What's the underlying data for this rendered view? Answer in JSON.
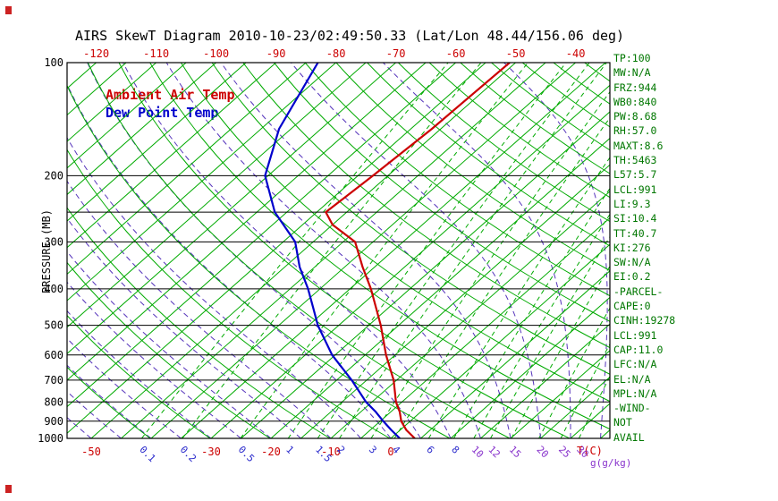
{
  "title": "AIRS SkewT Diagram 2010-10-23/02:49:50.33 (Lat/Lon 48.44/156.06 deg)",
  "legend": {
    "ambient": "Ambient Air Temp",
    "dew_point": "Dew Point Temp"
  },
  "axes": {
    "pressure_axis_label": "PRESSURE (MB)",
    "pressure_tick_labels": [
      "100",
      "200",
      "300",
      "400",
      "500",
      "600",
      "700",
      "800",
      "900",
      "1000"
    ],
    "pressure_tick_values": [
      100,
      200,
      300,
      400,
      500,
      600,
      700,
      800,
      900,
      1000
    ],
    "pressure_grid_lines_mb": [
      100,
      200,
      250,
      300,
      400,
      500,
      600,
      700,
      800,
      900,
      1000
    ],
    "top_temperature_tick_labels": [
      "-120",
      "-110",
      "-100",
      "-90",
      "-80",
      "-70",
      "-60",
      "-50",
      "-40"
    ],
    "top_temperature_tick_values": [
      -120,
      -110,
      -100,
      -90,
      -80,
      -70,
      -60,
      -50,
      -40
    ],
    "bottom_temperature_tick_labels": [
      "-50",
      "-30",
      "-20",
      "-10",
      "0"
    ],
    "bottom_temperature_tick_values": [
      -50,
      -30,
      -20,
      -10,
      0
    ],
    "temperature_unit_label": "T(C)",
    "mixing_ratio_unit_label": "g(g/kg)",
    "mixing_ratio_tick_labels": [
      "0.1",
      "0.2",
      "0.5",
      "1",
      "1.5",
      "2",
      "3",
      "4",
      "6",
      "8",
      "10",
      "12",
      "15",
      "20",
      "25",
      "30"
    ],
    "mixing_ratio_tick_values": [
      0.1,
      0.2,
      0.5,
      1,
      1.5,
      2,
      3,
      4,
      6,
      8,
      10,
      12,
      15,
      20,
      25,
      30
    ]
  },
  "chart_data": {
    "type": "line",
    "subtype": "skew-t-log-p",
    "title": "AIRS SkewT Diagram 2010-10-23/02:49:50.33 (Lat/Lon 48.44/156.06 deg)",
    "xlabel": "T(C)",
    "ylabel": "PRESSURE (MB)",
    "pressure_range_mb": [
      100,
      1000
    ],
    "temperature_axis_c_at_1000mb": [
      -50,
      40
    ],
    "series": [
      {
        "name": "Ambient Air Temp",
        "color": "#cc0000",
        "points_p_t": [
          [
            1000,
            4.0
          ],
          [
            950,
            1.0
          ],
          [
            900,
            -1.5
          ],
          [
            850,
            -3.5
          ],
          [
            800,
            -6.0
          ],
          [
            700,
            -10.5
          ],
          [
            600,
            -16.5
          ],
          [
            500,
            -23.0
          ],
          [
            400,
            -31.5
          ],
          [
            350,
            -37.0
          ],
          [
            300,
            -43.0
          ],
          [
            270,
            -50.0
          ],
          [
            250,
            -53.5
          ],
          [
            200,
            -52.5
          ],
          [
            150,
            -51.5
          ],
          [
            100,
            -51.0
          ]
        ]
      },
      {
        "name": "Dew Point Temp",
        "color": "#0000cc",
        "points_p_t": [
          [
            1000,
            1.5
          ],
          [
            950,
            -1.5
          ],
          [
            900,
            -4.5
          ],
          [
            850,
            -7.5
          ],
          [
            800,
            -11.0
          ],
          [
            700,
            -17.5
          ],
          [
            600,
            -25.5
          ],
          [
            500,
            -33.5
          ],
          [
            450,
            -37.5
          ],
          [
            400,
            -42.0
          ],
          [
            350,
            -47.5
          ],
          [
            300,
            -53.0
          ],
          [
            250,
            -62.0
          ],
          [
            200,
            -70.5
          ],
          [
            150,
            -77.0
          ],
          [
            100,
            -83.0
          ]
        ]
      }
    ],
    "grid": {
      "isotherms_c": {
        "min": -130,
        "max": 40,
        "step": 5
      },
      "dry_adiabats_theta_k": {
        "min": 233,
        "max": 453,
        "step": 10
      },
      "moist_adiabats_surface_c": {
        "min": -60,
        "max": 45,
        "step": 5
      },
      "mixing_ratio_lines_g_kg": [
        0.1,
        0.2,
        0.5,
        1,
        1.5,
        2,
        3,
        4,
        6,
        8,
        10,
        12,
        15,
        20,
        25,
        30
      ]
    }
  },
  "stats_panel": {
    "lines": [
      "TP:100",
      "MW:N/A",
      "FRZ:944",
      "WB0:840",
      "PW:8.68",
      "RH:57.0",
      "MAXT:8.6",
      "TH:5463",
      "L57:5.7",
      "LCL:991",
      "LI:9.3",
      "SI:10.4",
      "TT:40.7",
      "KI:276",
      "SW:N/A",
      "EI:0.2",
      "-PARCEL-",
      "CAPE:0",
      "CINH:19278",
      "LCL:991",
      "CAP:11.0",
      "LFC:N/A",
      "EL:N/A",
      "MPL:N/A",
      "-WIND-",
      "NOT",
      "AVAIL"
    ]
  },
  "colors": {
    "ambient_temp": "#cc0000",
    "dew_point": "#0000cc",
    "isotherm_green": "#00aa00",
    "mixing_ratio_green": "#00aa00",
    "moist_adiabat_purple": "#5533bb",
    "mixing_label_blue": "#2b2bcc",
    "mixing_label_violet": "#8833cc",
    "stats_green": "#007700",
    "axis_black": "#000000",
    "top_tick_red": "#cc0000"
  }
}
